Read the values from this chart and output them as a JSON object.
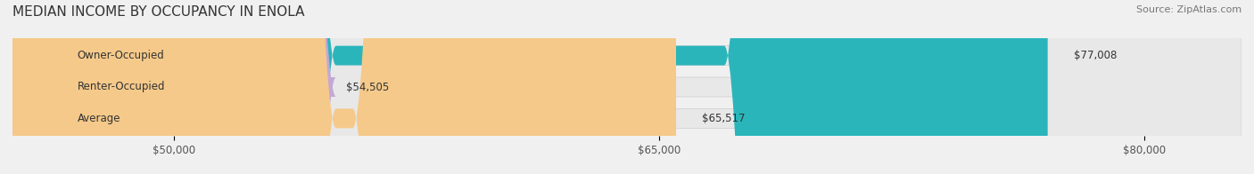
{
  "title": "MEDIAN INCOME BY OCCUPANCY IN ENOLA",
  "source": "Source: ZipAtlas.com",
  "categories": [
    "Owner-Occupied",
    "Renter-Occupied",
    "Average"
  ],
  "values": [
    77008,
    54505,
    65517
  ],
  "bar_colors": [
    "#2ab5bb",
    "#c4a8d4",
    "#f5c98a"
  ],
  "bar_labels": [
    "$77,008",
    "$54,505",
    "$65,517"
  ],
  "xlim_min": 45000,
  "xlim_max": 83000,
  "xticks": [
    50000,
    65000,
    80000
  ],
  "xtick_labels": [
    "$50,000",
    "$65,000",
    "$80,000"
  ],
  "bg_color": "#f0f0f0",
  "bar_bg_color": "#e8e8e8",
  "title_fontsize": 11,
  "label_fontsize": 8.5,
  "source_fontsize": 8
}
